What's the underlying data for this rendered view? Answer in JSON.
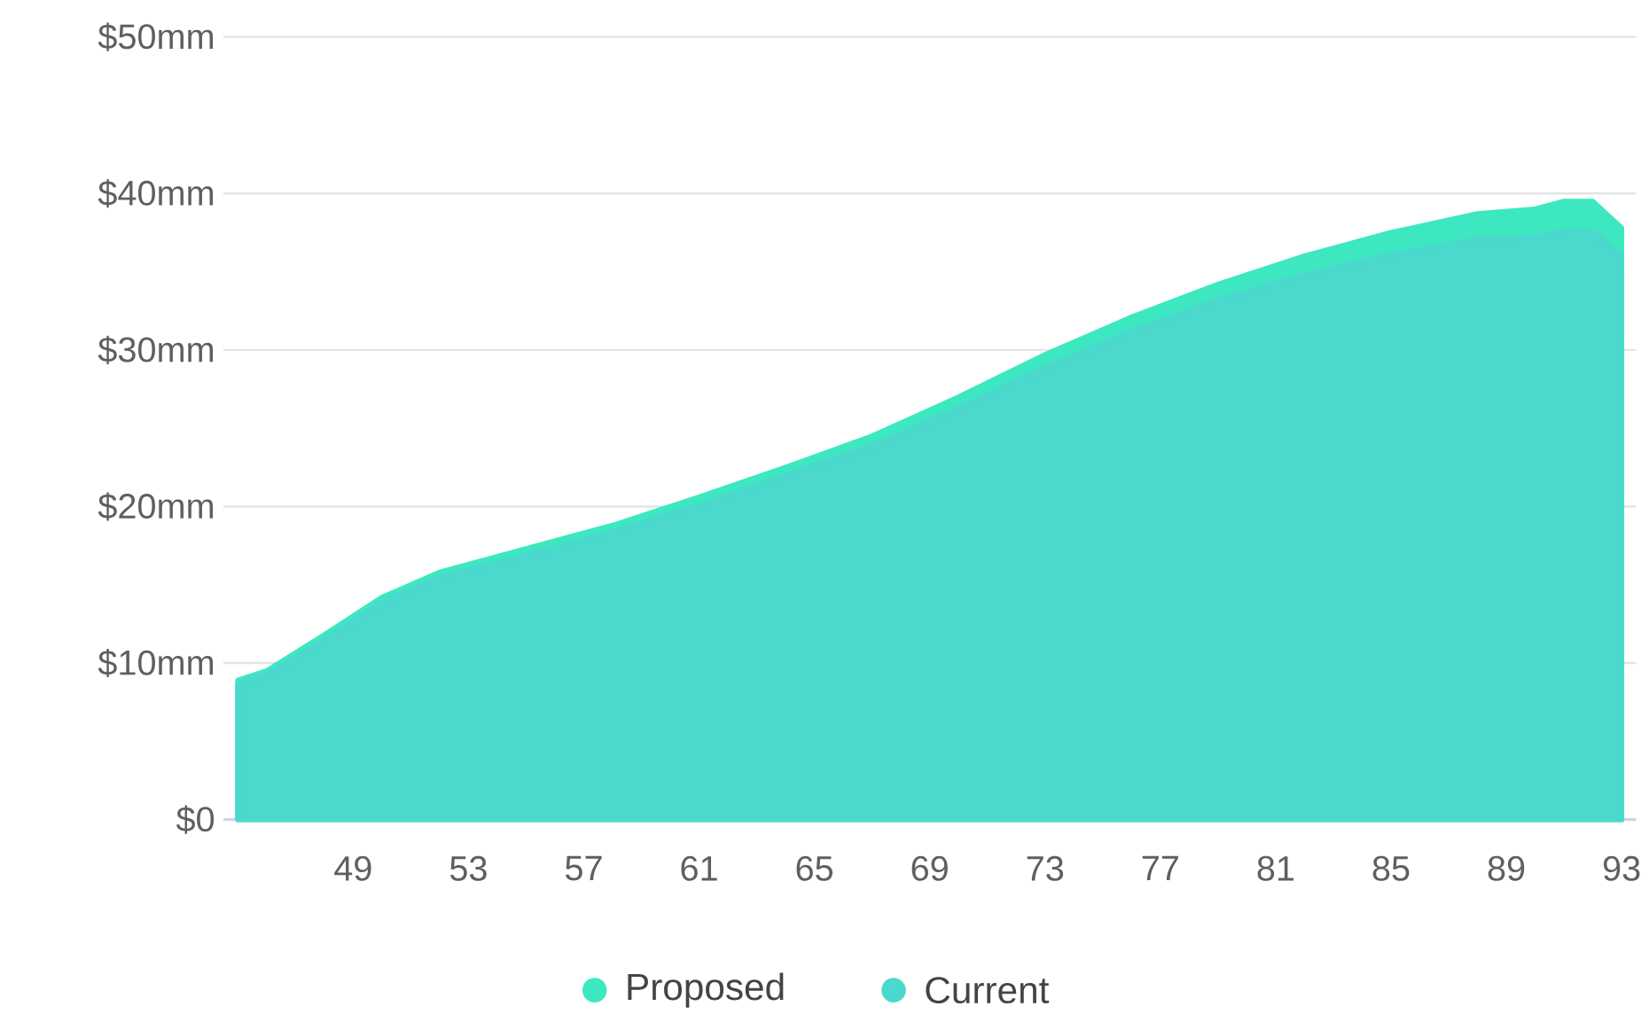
{
  "chart_data": {
    "type": "area",
    "xlim": [
      44.5,
      93.5
    ],
    "xticks": [
      49,
      53,
      57,
      61,
      65,
      69,
      73,
      77,
      81,
      85,
      89,
      93
    ],
    "ylim": [
      0,
      50
    ],
    "yticks": [
      {
        "value": 0,
        "label": "$0"
      },
      {
        "value": 10,
        "label": "$10mm"
      },
      {
        "value": 20,
        "label": "$20mm"
      },
      {
        "value": 30,
        "label": "$30mm"
      },
      {
        "value": 40,
        "label": "$40mm"
      },
      {
        "value": 50,
        "label": "$50mm"
      }
    ],
    "grid": "y",
    "legend": "bottom",
    "series": [
      {
        "name": "Proposed",
        "color": "#3de8c0",
        "x": [
          45,
          46,
          48,
          50,
          52,
          55,
          58,
          61,
          64,
          67,
          70,
          73,
          76,
          79,
          82,
          85,
          88,
          90,
          91,
          92,
          93
        ],
        "values": [
          8.9,
          9.5,
          11.8,
          14.2,
          15.8,
          17.3,
          18.8,
          20.6,
          22.5,
          24.5,
          27.0,
          29.7,
          32.1,
          34.2,
          36.0,
          37.5,
          38.7,
          39.0,
          39.5,
          39.5,
          37.8
        ]
      },
      {
        "name": "Current",
        "color": "#4ad9cc",
        "x": [
          45,
          46,
          48,
          50,
          52,
          55,
          58,
          61,
          64,
          67,
          70,
          73,
          76,
          79,
          82,
          85,
          88,
          90,
          91,
          92,
          93
        ],
        "values": [
          8.7,
          9.3,
          11.5,
          13.9,
          15.5,
          16.9,
          18.4,
          20.1,
          22.0,
          23.9,
          26.3,
          28.9,
          31.2,
          33.2,
          34.8,
          36.1,
          37.1,
          37.2,
          37.6,
          37.6,
          36.0
        ]
      }
    ]
  }
}
